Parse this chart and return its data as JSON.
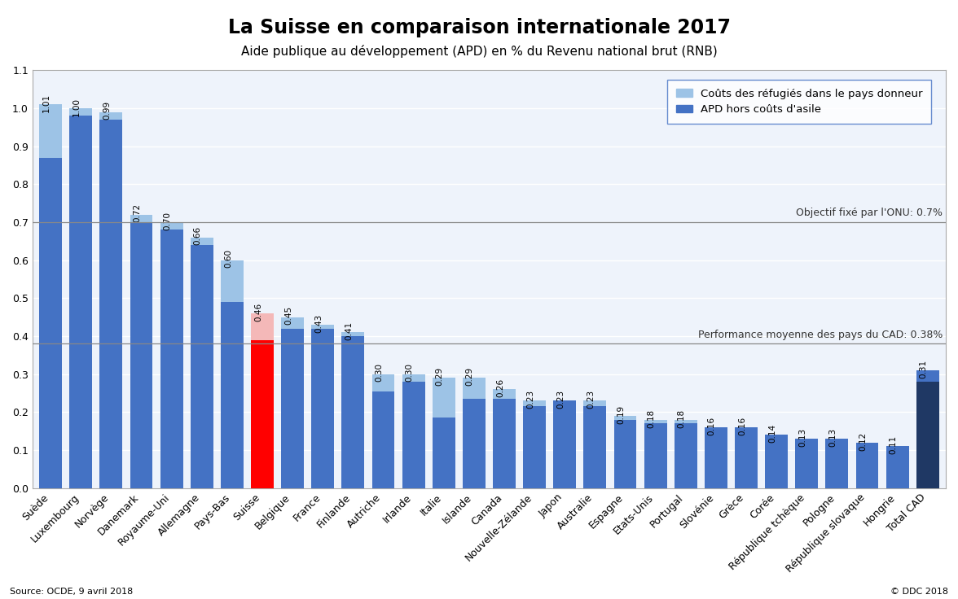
{
  "title": "La Suisse en comparaison internationale 2017",
  "subtitle": "Aide publique au développement (APD) en % du Revenu national brut (RNB)",
  "source": "Source: OCDE, 9 avril 2018",
  "copyright": "© DDC 2018",
  "legend_refugee": "Coûts des réfugiés dans le pays donneur",
  "legend_apd": "APD hors coûts d'asile",
  "onu_label": "Objectif fixé par l'ONU: 0.7%",
  "cad_label": "Performance moyenne des pays du CAD: 0.38%",
  "categories": [
    "Suède",
    "Luxembourg",
    "Norvège",
    "Danemark",
    "Royaume-Uni",
    "Allemagne",
    "Pays-Bas",
    "Suisse",
    "Belgique",
    "France",
    "Finlande",
    "Autriche",
    "Irlande",
    "Italie",
    "Islande",
    "Canada",
    "Nouvelle-Zélande",
    "Japon",
    "Australie",
    "Espagne",
    "Etats-Unis",
    "Portugal",
    "Slovénie",
    "Grèce",
    "Corée",
    "République tchèque",
    "Pologne",
    "République slovaque",
    "Hongrie",
    "Total CAD"
  ],
  "total_values": [
    1.01,
    1.0,
    0.99,
    0.72,
    0.7,
    0.66,
    0.6,
    0.46,
    0.45,
    0.43,
    0.41,
    0.3,
    0.3,
    0.29,
    0.29,
    0.26,
    0.23,
    0.23,
    0.23,
    0.19,
    0.18,
    0.18,
    0.16,
    0.16,
    0.14,
    0.13,
    0.13,
    0.12,
    0.11,
    0.31
  ],
  "apd_values": [
    0.87,
    0.98,
    0.97,
    0.7,
    0.68,
    0.64,
    0.49,
    0.39,
    0.42,
    0.42,
    0.4,
    0.255,
    0.28,
    0.185,
    0.235,
    0.235,
    0.215,
    0.23,
    0.215,
    0.18,
    0.17,
    0.17,
    0.16,
    0.16,
    0.14,
    0.13,
    0.13,
    0.12,
    0.11,
    0.28
  ],
  "is_switzerland": [
    false,
    false,
    false,
    false,
    false,
    false,
    false,
    true,
    false,
    false,
    false,
    false,
    false,
    false,
    false,
    false,
    false,
    false,
    false,
    false,
    false,
    false,
    false,
    false,
    false,
    false,
    false,
    false,
    false,
    false
  ],
  "is_total_cad": [
    false,
    false,
    false,
    false,
    false,
    false,
    false,
    false,
    false,
    false,
    false,
    false,
    false,
    false,
    false,
    false,
    false,
    false,
    false,
    false,
    false,
    false,
    false,
    false,
    false,
    false,
    false,
    false,
    false,
    true
  ],
  "color_apd": "#4472C4",
  "color_refugee": "#9DC3E6",
  "color_switzerland_apd": "#FF0000",
  "color_switzerland_refugee": "#F4B8B8",
  "color_total_cad_bottom": "#1F3864",
  "color_total_cad_top": "#4472C4",
  "onu_target": 0.7,
  "cad_avg": 0.38,
  "ylim_min": 0.0,
  "ylim_max": 1.1,
  "ytick_labels": [
    "0.0",
    "0.1",
    "0.2",
    "0.3",
    "0.4",
    "0.5",
    "0.6",
    "0.7",
    "0.8",
    "0.9",
    "1.0",
    "1.1"
  ],
  "ytick_vals": [
    0.0,
    0.1,
    0.2,
    0.3,
    0.4,
    0.5,
    0.6,
    0.7,
    0.8,
    0.9,
    1.0,
    1.1
  ],
  "chart_bg": "#EEF3FB",
  "grid_color": "#FFFFFF",
  "title_fontsize": 17,
  "subtitle_fontsize": 11,
  "tick_fontsize": 9,
  "val_fontsize": 7.5,
  "ref_label_fontsize": 9,
  "legend_fontsize": 9.5,
  "source_fontsize": 8
}
